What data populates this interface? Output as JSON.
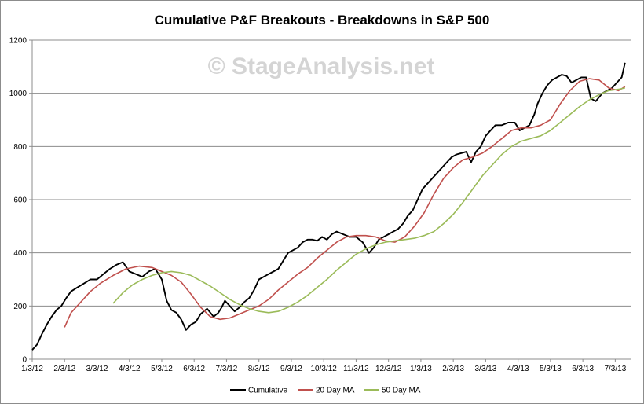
{
  "chart_data": {
    "type": "line",
    "title": "Cumulative P&F Breakouts - Breakdowns in S&P 500",
    "watermark": "© StageAnalysis.net",
    "xlabel": "",
    "ylabel": "",
    "ylim": [
      0,
      1200
    ],
    "yticks": [
      "0",
      "200",
      "400",
      "600",
      "800",
      "1000",
      "1200"
    ],
    "xlim": [
      0,
      18.5
    ],
    "xticks": [
      "1/3/12",
      "2/3/12",
      "3/3/12",
      "4/3/12",
      "5/3/12",
      "6/3/12",
      "7/3/12",
      "8/3/12",
      "9/3/12",
      "10/3/12",
      "11/3/12",
      "12/3/12",
      "1/3/13",
      "2/3/13",
      "3/3/13",
      "4/3/13",
      "5/3/13",
      "6/3/13",
      "7/3/13"
    ],
    "grid": "horizontal",
    "legend_position": "bottom",
    "series": [
      {
        "name": "Cumulative",
        "color": "#000000",
        "x": [
          0,
          0.15,
          0.3,
          0.45,
          0.6,
          0.75,
          0.9,
          1.05,
          1.2,
          1.4,
          1.6,
          1.8,
          2.0,
          2.2,
          2.4,
          2.6,
          2.8,
          3.0,
          3.2,
          3.4,
          3.6,
          3.8,
          4.0,
          4.15,
          4.3,
          4.45,
          4.6,
          4.75,
          4.9,
          5.05,
          5.2,
          5.4,
          5.6,
          5.75,
          5.85,
          5.95,
          6.1,
          6.25,
          6.4,
          6.55,
          6.7,
          6.85,
          7.0,
          7.15,
          7.3,
          7.45,
          7.6,
          7.75,
          7.9,
          8.05,
          8.2,
          8.35,
          8.5,
          8.65,
          8.8,
          8.95,
          9.1,
          9.25,
          9.4,
          9.6,
          9.8,
          10.0,
          10.2,
          10.4,
          10.55,
          10.7,
          10.85,
          11.0,
          11.15,
          11.3,
          11.45,
          11.6,
          11.75,
          11.9,
          12.05,
          12.2,
          12.35,
          12.5,
          12.65,
          12.8,
          12.95,
          13.1,
          13.25,
          13.4,
          13.55,
          13.7,
          13.85,
          14.0,
          14.15,
          14.3,
          14.5,
          14.7,
          14.9,
          15.05,
          15.2,
          15.35,
          15.5,
          15.6,
          15.75,
          15.9,
          16.05,
          16.2,
          16.35,
          16.5,
          16.65,
          16.8,
          16.95,
          17.1,
          17.25,
          17.4,
          17.5,
          17.6,
          17.75,
          17.9,
          18.05,
          18.2,
          18.3
        ],
        "values": [
          35,
          55,
          95,
          130,
          160,
          185,
          200,
          230,
          255,
          270,
          285,
          300,
          300,
          320,
          340,
          355,
          365,
          330,
          320,
          310,
          330,
          340,
          300,
          220,
          185,
          175,
          150,
          110,
          130,
          140,
          170,
          190,
          160,
          175,
          195,
          220,
          200,
          180,
          195,
          215,
          230,
          260,
          300,
          310,
          320,
          330,
          340,
          370,
          400,
          410,
          420,
          440,
          450,
          450,
          445,
          460,
          450,
          470,
          480,
          470,
          460,
          460,
          440,
          400,
          420,
          450,
          460,
          470,
          480,
          490,
          510,
          540,
          560,
          600,
          640,
          660,
          680,
          700,
          720,
          740,
          760,
          770,
          775,
          780,
          740,
          780,
          800,
          840,
          860,
          880,
          880,
          890,
          890,
          860,
          870,
          880,
          920,
          960,
          1000,
          1030,
          1050,
          1060,
          1070,
          1065,
          1040,
          1050,
          1060,
          1060,
          980,
          970,
          985,
          1000,
          1010,
          1020,
          1040,
          1060,
          1115
        ]
      },
      {
        "name": "20 Day MA",
        "color": "#c0504d",
        "x": [
          1.0,
          1.2,
          1.5,
          1.8,
          2.1,
          2.5,
          2.9,
          3.3,
          3.7,
          4.0,
          4.3,
          4.6,
          4.9,
          5.2,
          5.5,
          5.8,
          6.1,
          6.4,
          6.7,
          7.0,
          7.3,
          7.6,
          7.9,
          8.2,
          8.5,
          8.8,
          9.1,
          9.4,
          9.7,
          10.0,
          10.3,
          10.6,
          10.9,
          11.2,
          11.5,
          11.8,
          12.1,
          12.4,
          12.7,
          13.0,
          13.3,
          13.6,
          13.9,
          14.2,
          14.5,
          14.8,
          15.1,
          15.4,
          15.7,
          16.0,
          16.3,
          16.6,
          16.9,
          17.2,
          17.5,
          17.8,
          18.1,
          18.3
        ],
        "values": [
          120,
          175,
          215,
          255,
          285,
          315,
          340,
          350,
          345,
          330,
          315,
          290,
          245,
          195,
          160,
          150,
          155,
          170,
          185,
          200,
          225,
          260,
          290,
          320,
          345,
          380,
          410,
          440,
          460,
          465,
          465,
          460,
          445,
          440,
          460,
          500,
          550,
          620,
          680,
          720,
          750,
          760,
          775,
          800,
          830,
          860,
          870,
          870,
          880,
          900,
          960,
          1010,
          1045,
          1055,
          1050,
          1020,
          1010,
          1025
        ]
      },
      {
        "name": "50 Day MA",
        "color": "#9bbb59",
        "x": [
          2.5,
          2.8,
          3.1,
          3.4,
          3.7,
          4.0,
          4.3,
          4.6,
          4.9,
          5.2,
          5.5,
          5.8,
          6.1,
          6.4,
          6.7,
          7.0,
          7.3,
          7.6,
          7.9,
          8.2,
          8.5,
          8.8,
          9.1,
          9.4,
          9.7,
          10.0,
          10.3,
          10.6,
          10.9,
          11.2,
          11.5,
          11.8,
          12.1,
          12.4,
          12.7,
          13.0,
          13.3,
          13.6,
          13.9,
          14.2,
          14.5,
          14.8,
          15.1,
          15.4,
          15.7,
          16.0,
          16.3,
          16.6,
          16.9,
          17.2,
          17.5,
          17.8,
          18.1,
          18.3
        ],
        "values": [
          210,
          250,
          280,
          300,
          315,
          325,
          330,
          325,
          315,
          295,
          275,
          250,
          225,
          205,
          190,
          180,
          175,
          180,
          195,
          215,
          240,
          270,
          300,
          335,
          365,
          395,
          415,
          430,
          440,
          445,
          450,
          455,
          465,
          480,
          510,
          545,
          590,
          640,
          690,
          730,
          770,
          800,
          820,
          830,
          840,
          860,
          890,
          920,
          950,
          975,
          995,
          1010,
          1015,
          1020
        ]
      }
    ]
  }
}
